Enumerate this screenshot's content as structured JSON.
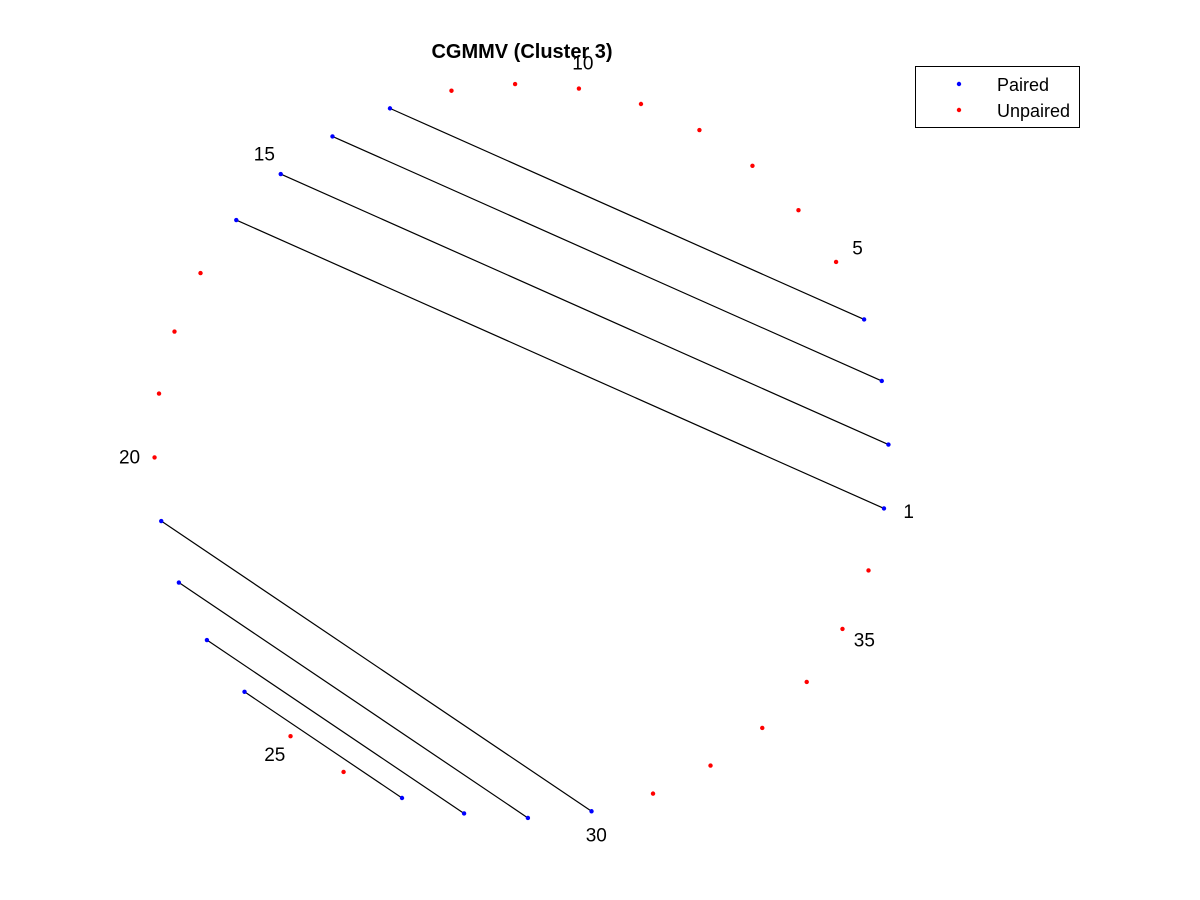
{
  "chart_data": {
    "type": "scatter",
    "title": "CGMMV (Cluster 3)",
    "n_positions": 36,
    "position_labels": [
      "1",
      "5",
      "10",
      "15",
      "20",
      "25",
      "30",
      "35"
    ],
    "paired_positions": [
      1,
      2,
      3,
      4,
      13,
      14,
      15,
      16,
      21,
      22,
      23,
      24,
      27,
      28,
      29,
      30
    ],
    "pairs": [
      [
        1,
        16
      ],
      [
        2,
        15
      ],
      [
        3,
        14
      ],
      [
        4,
        13
      ],
      [
        21,
        30
      ],
      [
        22,
        29
      ],
      [
        23,
        28
      ],
      [
        24,
        27
      ]
    ],
    "series": [
      {
        "name": "Paired",
        "color": "#0000ff"
      },
      {
        "name": "Unpaired",
        "color": "#ff0000"
      }
    ],
    "line_color": "#000000",
    "legend_position": "top-right"
  }
}
